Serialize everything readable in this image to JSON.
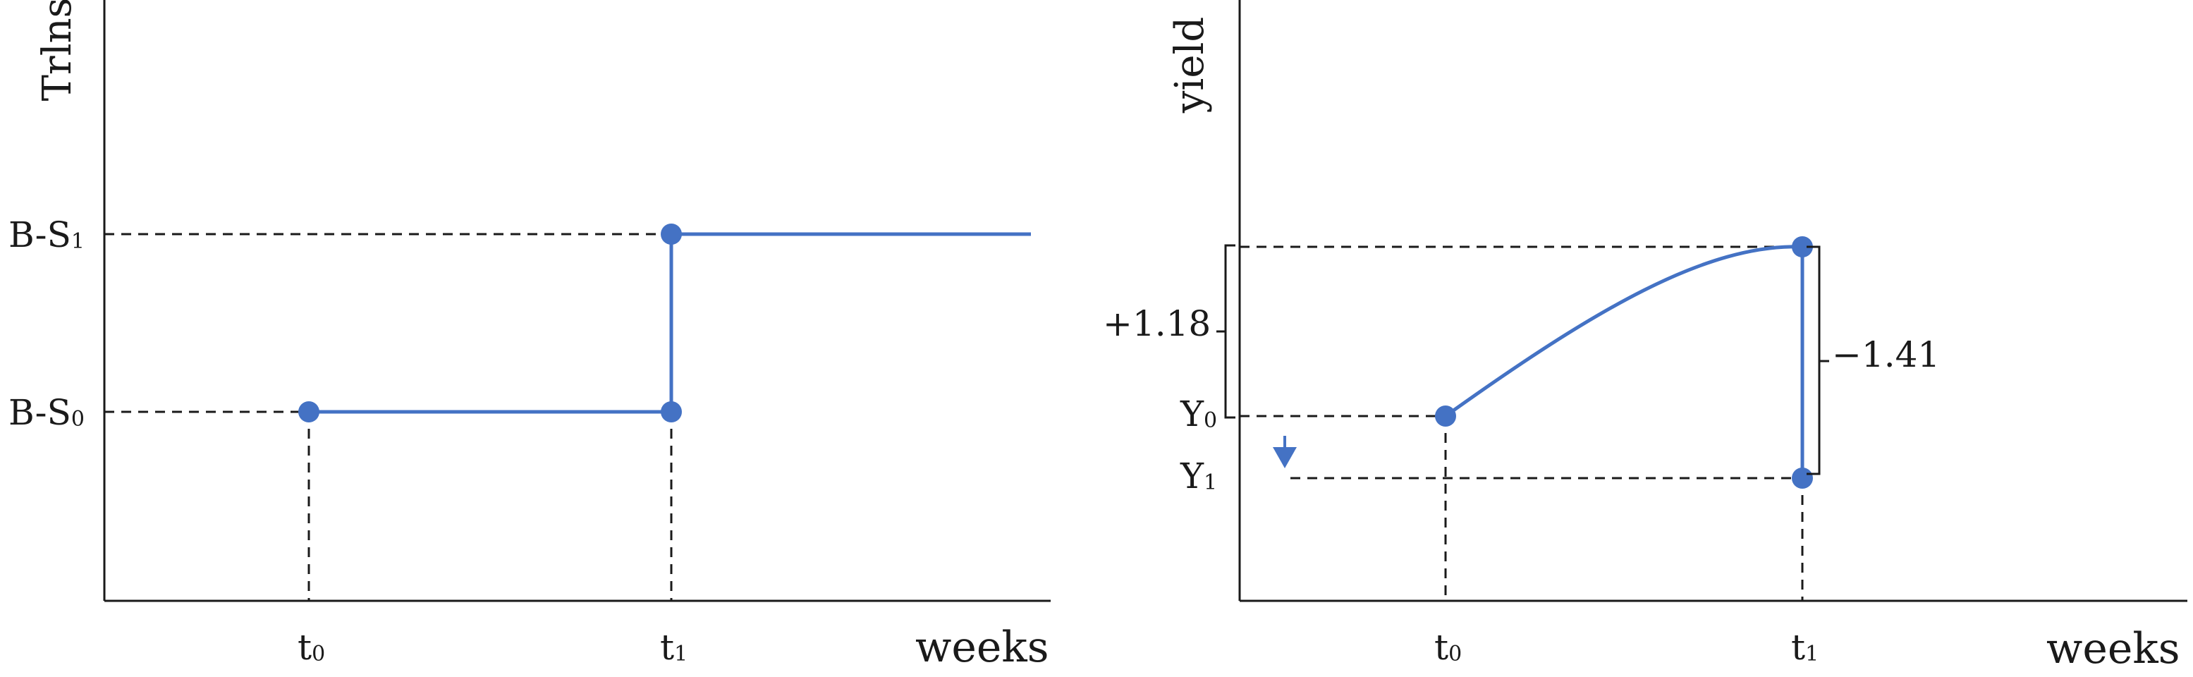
{
  "colors": {
    "series": "#4472c4",
    "ink": "#1a1a1a",
    "background": "#ffffff"
  },
  "left_panel": {
    "y_axis_label": "Trlns",
    "x_axis_label": "weeks",
    "y_levels": [
      {
        "base": "B-S",
        "sub": "1"
      },
      {
        "base": "B-S",
        "sub": "0"
      }
    ],
    "x_ticks": [
      {
        "base": "t",
        "sub": "0"
      },
      {
        "base": "t",
        "sub": "1"
      }
    ]
  },
  "right_panel": {
    "y_axis_label": "yield",
    "x_axis_label": "weeks",
    "y_levels": [
      {
        "base": "Y",
        "sub": "0"
      },
      {
        "base": "Y",
        "sub": "1"
      }
    ],
    "x_ticks": [
      {
        "base": "t",
        "sub": "0"
      },
      {
        "base": "t",
        "sub": "1"
      }
    ],
    "annotations": {
      "rise": "+1.18",
      "drop": "−1.41",
      "arrow_icon": "down-arrow-icon"
    }
  }
}
